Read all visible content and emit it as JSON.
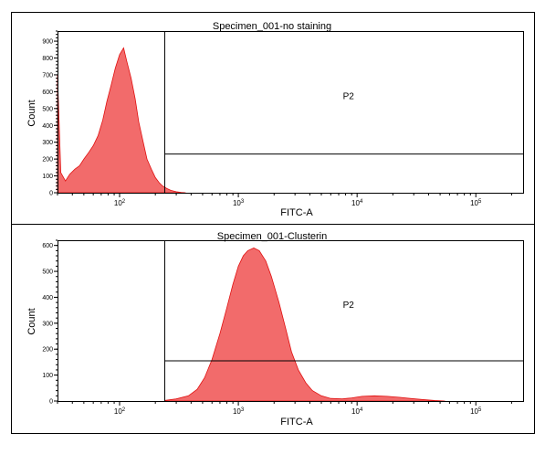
{
  "chart_data": [
    {
      "type": "area",
      "title": "Specimen_001-no staining",
      "xlabel": "FITC-A",
      "ylabel": "Count",
      "x_scale": "log",
      "xlim": [
        30,
        250000
      ],
      "ylim": [
        0,
        960
      ],
      "y_ticks": [
        0,
        100,
        200,
        300,
        400,
        500,
        600,
        700,
        800,
        900
      ],
      "x_tick_labels": [
        {
          "base": "10",
          "exp": "2",
          "value": 100
        },
        {
          "base": "10",
          "exp": "3",
          "value": 1000
        },
        {
          "base": "10",
          "exp": "4",
          "value": 10000
        },
        {
          "base": "10",
          "exp": "5",
          "value": 100000
        }
      ],
      "gate": {
        "label": "P2",
        "x_min": 240,
        "count_level": 230
      },
      "series": [
        {
          "color": "#e01010",
          "fill": "#f26b6b",
          "x": [
            30,
            32,
            35,
            38,
            42,
            46,
            50,
            55,
            60,
            66,
            72,
            78,
            85,
            92,
            100,
            108,
            115,
            125,
            135,
            145,
            158,
            170,
            185,
            200,
            215,
            230,
            250,
            270,
            300,
            330,
            360
          ],
          "y": [
            700,
            120,
            70,
            110,
            140,
            160,
            200,
            240,
            280,
            340,
            430,
            540,
            640,
            740,
            820,
            860,
            780,
            680,
            560,
            420,
            300,
            200,
            140,
            90,
            60,
            40,
            25,
            14,
            6,
            2,
            0
          ]
        }
      ]
    },
    {
      "type": "area",
      "title": "Specimen_001-Clusterin",
      "xlabel": "FITC-A",
      "ylabel": "Count",
      "x_scale": "log",
      "xlim": [
        30,
        250000
      ],
      "ylim": [
        0,
        620
      ],
      "y_ticks": [
        0,
        100,
        200,
        300,
        400,
        500,
        600
      ],
      "x_tick_labels": [
        {
          "base": "10",
          "exp": "2",
          "value": 100
        },
        {
          "base": "10",
          "exp": "3",
          "value": 1000
        },
        {
          "base": "10",
          "exp": "4",
          "value": 10000
        },
        {
          "base": "10",
          "exp": "5",
          "value": 100000
        }
      ],
      "gate": {
        "label": "P2",
        "x_min": 240,
        "count_level": 155
      },
      "series": [
        {
          "color": "#e01010",
          "fill": "#f26b6b",
          "x": [
            240,
            300,
            380,
            450,
            520,
            600,
            700,
            800,
            900,
            1000,
            1100,
            1200,
            1350,
            1500,
            1700,
            1900,
            2200,
            2500,
            2800,
            3200,
            3700,
            4200,
            5000,
            6000,
            7500,
            9000,
            11000,
            14000,
            18000,
            23000,
            28000,
            35000,
            45000,
            55000
          ],
          "y": [
            2,
            8,
            20,
            45,
            90,
            160,
            260,
            360,
            450,
            520,
            560,
            580,
            590,
            580,
            540,
            480,
            380,
            280,
            190,
            120,
            70,
            40,
            20,
            10,
            8,
            12,
            18,
            20,
            18,
            14,
            10,
            6,
            2,
            0
          ]
        }
      ]
    }
  ]
}
